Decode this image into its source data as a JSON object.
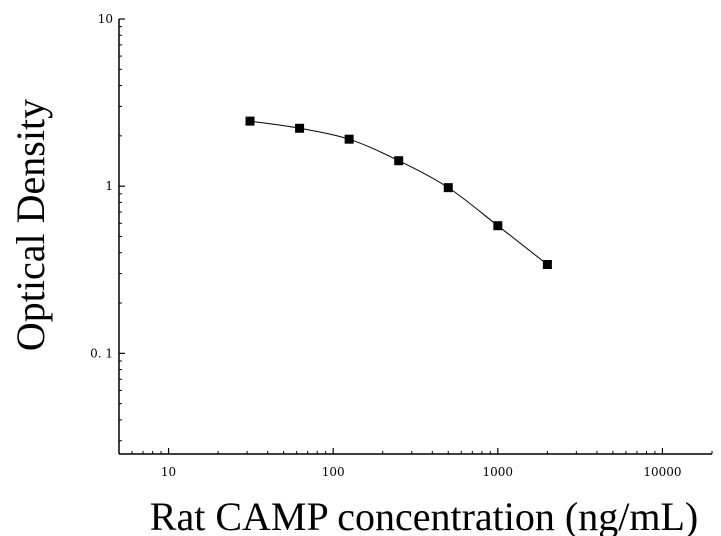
{
  "chart_data": {
    "type": "scatter",
    "title": "",
    "xlabel": "Rat CAMP concentration (ng/mL)",
    "ylabel": "Optical Density",
    "x_scale": "log",
    "y_scale": "log",
    "xlim": [
      5,
      20000
    ],
    "ylim": [
      0.025,
      10
    ],
    "x_ticks": [
      {
        "value": 10,
        "label": "10"
      },
      {
        "value": 100,
        "label": "100"
      },
      {
        "value": 1000,
        "label": "1000"
      },
      {
        "value": 10000,
        "label": "10000"
      }
    ],
    "y_ticks": [
      {
        "value": 0.1,
        "label": "0. 1"
      },
      {
        "value": 1,
        "label": "1"
      },
      {
        "value": 10,
        "label": "10"
      }
    ],
    "grid": false,
    "legend": "none",
    "series": [
      {
        "x": [
          31.25,
          62.5,
          125,
          250,
          500,
          1000,
          2000
        ],
        "y": [
          2.45,
          2.22,
          1.91,
          1.42,
          0.98,
          0.58,
          0.34
        ],
        "marker": "square",
        "fitted_curve": true,
        "color": "#000000"
      }
    ]
  }
}
